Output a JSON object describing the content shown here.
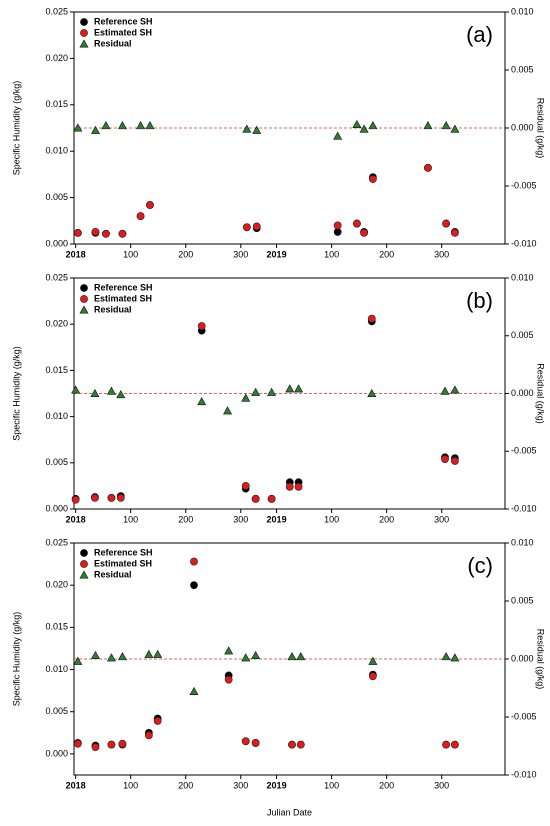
{
  "chart_data": [
    {
      "type": "scatter",
      "panel_label": "(a)",
      "ylabel": "Specific Humidity (g/kg)",
      "y2label": "Residual (g/kg)",
      "legend": "upper left",
      "x": [
        4,
        36,
        55,
        85,
        118,
        135,
        311,
        329,
        476,
        511,
        524,
        540,
        640,
        673,
        689
      ],
      "series": [
        {
          "name": "Reference SH",
          "color": "#000000",
          "marker": "circle",
          "values": [
            0.0012,
            0.0012,
            0.0011,
            0.0011,
            0.003,
            0.0042,
            0.0018,
            0.0017,
            0.0013,
            0.0022,
            0.0013,
            0.0072,
            0.0082,
            0.0022,
            0.0013
          ]
        },
        {
          "name": "Estimated SH",
          "color": "#e31a1c",
          "marker": "circle",
          "values": [
            0.0012,
            0.0013,
            0.0011,
            0.0011,
            0.003,
            0.0042,
            0.0018,
            0.0019,
            0.002,
            0.0022,
            0.0012,
            0.007,
            0.0082,
            0.0022,
            0.0012
          ]
        },
        {
          "name": "Residual",
          "color": "#2e7d32",
          "marker": "triangle",
          "axis": "y2",
          "values": [
            0.0,
            -0.0002,
            0.0002,
            0.0002,
            0.0002,
            0.0002,
            -0.0001,
            -0.0002,
            -0.0007,
            0.0003,
            -0.0001,
            0.0002,
            0.0002,
            0.0002,
            -0.0001
          ]
        }
      ],
      "reference_line": {
        "value": 0,
        "axis": "y2",
        "color": "#e03030",
        "style": "dashed"
      },
      "xlim": [
        -3,
        780
      ],
      "xticks": [
        {
          "value": 0,
          "label": "2018"
        },
        100,
        200,
        300,
        {
          "value": 365,
          "label": "2019"
        },
        {
          "value": 465,
          "label": "100"
        },
        {
          "value": 565,
          "label": "200"
        },
        {
          "value": 665,
          "label": "300"
        }
      ],
      "ylim": [
        0,
        0.025
      ],
      "yticks": [
        {
          "value": 0,
          "label": "0.000"
        },
        {
          "value": 0.005,
          "label": "0.005"
        },
        {
          "value": 0.01,
          "label": "0.010"
        },
        {
          "value": 0.015,
          "label": "0.015"
        },
        {
          "value": 0.02,
          "label": "0.020"
        },
        {
          "value": 0.025,
          "label": "0.025"
        }
      ],
      "y2lim": [
        -0.01,
        0.01
      ],
      "y2ticks": [
        {
          "value": -0.01,
          "label": "-0.010"
        },
        {
          "value": -0.005,
          "label": "-0.005"
        },
        {
          "value": 0,
          "label": "0.000"
        },
        {
          "value": 0.005,
          "label": "0.005"
        },
        {
          "value": 0.01,
          "label": "0.010"
        }
      ]
    },
    {
      "type": "scatter",
      "panel_label": "(b)",
      "ylabel": "Specific Humidity (g/kg)",
      "y2label": "Residual (g/kg)",
      "legend": "upper left",
      "x": [
        0,
        35,
        65,
        82,
        229,
        276,
        309,
        327,
        356,
        389,
        405,
        538,
        671,
        689
      ],
      "series": [
        {
          "name": "Reference SH",
          "color": "#000000",
          "marker": "circle",
          "values": [
            0.0011,
            0.0013,
            0.0012,
            0.0014,
            0.0193,
            null,
            0.0022,
            0.0011,
            0.0011,
            0.0029,
            0.0029,
            0.0203,
            0.0056,
            0.0055
          ]
        },
        {
          "name": "Estimated SH",
          "color": "#e31a1c",
          "marker": "circle",
          "values": [
            0.001,
            0.0012,
            0.0012,
            0.0012,
            0.0198,
            null,
            0.0025,
            0.0011,
            0.0011,
            0.0024,
            0.0024,
            0.0206,
            0.0054,
            0.0052
          ]
        },
        {
          "name": "Residual",
          "color": "#2e7d32",
          "marker": "triangle",
          "axis": "y2",
          "values": [
            0.0003,
            0.0,
            0.0002,
            -0.0001,
            -0.0007,
            -0.0015,
            -0.0004,
            0.0001,
            0.0001,
            0.0004,
            0.0004,
            0.0,
            0.0002,
            0.0003
          ]
        }
      ],
      "reference_line": {
        "value": 0,
        "axis": "y2",
        "color": "#e03030",
        "style": "dashed"
      },
      "xlim": [
        -3,
        780
      ],
      "xticks": [
        {
          "value": 0,
          "label": "2018"
        },
        100,
        200,
        300,
        {
          "value": 365,
          "label": "2019"
        },
        {
          "value": 465,
          "label": "100"
        },
        {
          "value": 565,
          "label": "200"
        },
        {
          "value": 665,
          "label": "300"
        }
      ],
      "ylim": [
        0,
        0.025
      ],
      "yticks": [
        {
          "value": 0,
          "label": "0.000"
        },
        {
          "value": 0.005,
          "label": "0.005"
        },
        {
          "value": 0.01,
          "label": "0.010"
        },
        {
          "value": 0.015,
          "label": "0.015"
        },
        {
          "value": 0.02,
          "label": "0.020"
        },
        {
          "value": 0.025,
          "label": "0.025"
        }
      ],
      "y2lim": [
        -0.01,
        0.01
      ],
      "y2ticks": [
        {
          "value": -0.01,
          "label": "-0.010"
        },
        {
          "value": -0.005,
          "label": "-0.005"
        },
        {
          "value": 0,
          "label": "0.000"
        },
        {
          "value": 0.005,
          "label": "0.005"
        },
        {
          "value": 0.01,
          "label": "0.010"
        }
      ]
    },
    {
      "type": "scatter",
      "panel_label": "(c)",
      "ylabel": "Specific Humidity (g/kg)",
      "y2label": "Residual (g/kg)",
      "xlabel": "Julian Date",
      "legend": "upper left",
      "x": [
        4,
        36,
        65,
        85,
        133,
        149,
        215,
        278,
        309,
        327,
        393,
        409,
        540,
        673,
        689
      ],
      "series": [
        {
          "name": "Reference SH",
          "color": "#000000",
          "marker": "circle",
          "values": [
            0.0013,
            0.001,
            0.0011,
            0.0011,
            0.0025,
            0.0042,
            0.02,
            0.0093,
            0.0015,
            0.0013,
            0.0011,
            0.0011,
            0.0094,
            0.0011,
            0.0011
          ]
        },
        {
          "name": "Estimated SH",
          "color": "#e31a1c",
          "marker": "circle",
          "values": [
            0.0012,
            0.0008,
            0.0011,
            0.0012,
            0.0022,
            0.0039,
            0.0228,
            0.0088,
            0.0015,
            0.0013,
            0.0011,
            0.0011,
            0.0092,
            0.0011,
            0.0011
          ]
        },
        {
          "name": "Residual",
          "color": "#2e7d32",
          "marker": "triangle",
          "axis": "y2",
          "values": [
            -0.0002,
            0.0003,
            0.0001,
            0.0002,
            0.0004,
            0.0004,
            -0.0028,
            0.0007,
            0.0001,
            0.0003,
            0.0002,
            0.0002,
            -0.0002,
            0.0002,
            0.0001
          ]
        }
      ],
      "reference_line": {
        "value": 0,
        "axis": "y2",
        "color": "#e03030",
        "style": "dashed"
      },
      "xlim": [
        -3,
        780
      ],
      "xticks": [
        {
          "value": 0,
          "label": "2018"
        },
        100,
        200,
        300,
        {
          "value": 365,
          "label": "2019"
        },
        {
          "value": 465,
          "label": "100"
        },
        {
          "value": 565,
          "label": "200"
        },
        {
          "value": 665,
          "label": "300"
        }
      ],
      "ylim": [
        -0.0025,
        0.025
      ],
      "yticks": [
        {
          "value": 0,
          "label": "0.000"
        },
        {
          "value": 0.005,
          "label": "0.005"
        },
        {
          "value": 0.01,
          "label": "0.010"
        },
        {
          "value": 0.015,
          "label": "0.015"
        },
        {
          "value": 0.02,
          "label": "0.020"
        },
        {
          "value": 0.025,
          "label": "0.025"
        }
      ],
      "y2lim": [
        -0.01,
        0.01
      ],
      "y2ticks": [
        {
          "value": -0.01,
          "label": "-0.010"
        },
        {
          "value": -0.005,
          "label": "-0.005"
        },
        {
          "value": 0,
          "label": "0.000"
        },
        {
          "value": 0.005,
          "label": "0.005"
        },
        {
          "value": 0.01,
          "label": "0.010"
        }
      ]
    }
  ]
}
